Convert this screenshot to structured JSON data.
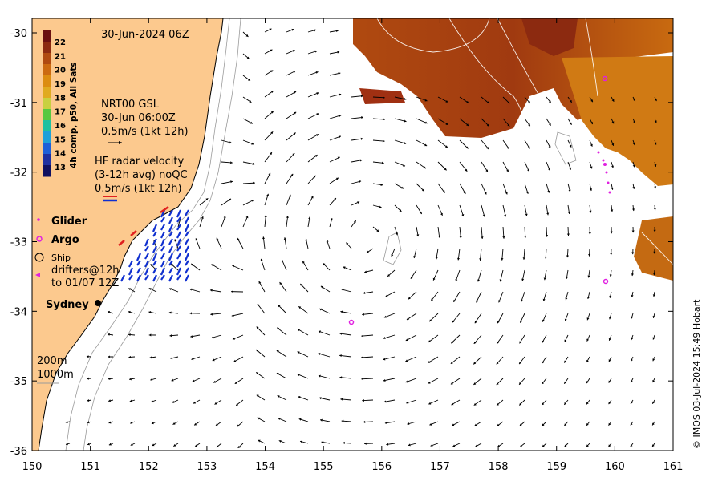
{
  "map": {
    "title": "30-Jun-2024 06Z",
    "x_ticks": [
      "150",
      "151",
      "152",
      "153",
      "154",
      "155",
      "156",
      "157",
      "158",
      "159",
      "160",
      "161"
    ],
    "y_ticks": [
      "-30",
      "-31",
      "-32",
      "-33",
      "-34",
      "-35",
      "-36"
    ],
    "colorbar": {
      "label": "4h comp, p50, All Sats",
      "ticks": [
        "22",
        "21",
        "20",
        "19",
        "18",
        "17",
        "16",
        "15",
        "14",
        "13"
      ],
      "colors": [
        "#6a1010",
        "#8c2a10",
        "#b04a10",
        "#cc6a10",
        "#dc8c10",
        "#e0aa20",
        "#c8d040",
        "#58c840",
        "#20c0a0",
        "#20a0d8",
        "#2060d8",
        "#2030a0",
        "#101060"
      ]
    },
    "legend": {
      "nrt_title": "NRT00 GSL",
      "nrt_time": "30-Jun 06:00Z",
      "nrt_scale": "0.5m/s (1kt 12h)",
      "hf_title": "HF radar velocity",
      "hf_avg": "(3-12h avg) noQC",
      "hf_scale": "0.5m/s (1kt 12h)",
      "glider": "Glider",
      "argo": "Argo",
      "ship": "Ship",
      "drifters_1": "drifters@12h",
      "drifters_2": "to 01/07 12Z",
      "city": "Sydney",
      "contour_200": "200m",
      "contour_1000": "1000m"
    },
    "credit": "© IMOS 03-Jul-2024 15:49 Hobart",
    "colors": {
      "land": "#fcc98e",
      "argo": "#e020e0",
      "glider": "#e020e0",
      "hf_arrow": "#1030d0",
      "hf_red": "#e02020"
    }
  }
}
